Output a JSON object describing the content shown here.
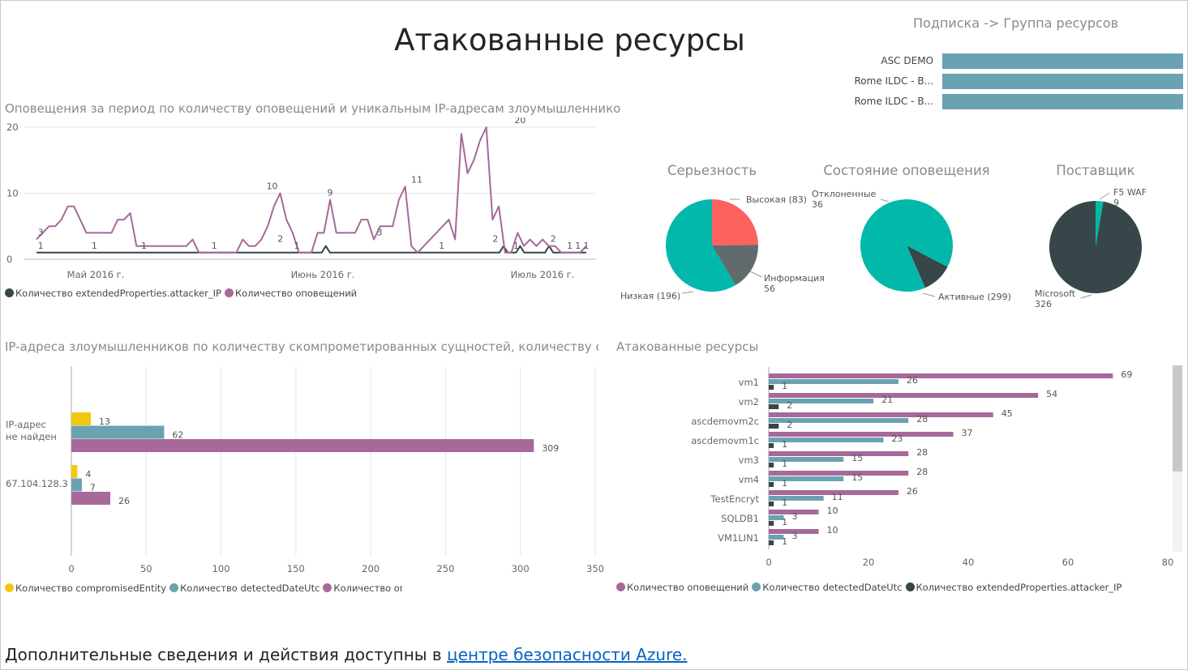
{
  "page": {
    "title": "Атакованные ресурсы",
    "footer_text": "Дополнительные сведения и действия доступны в ",
    "footer_link": "центре безопасности Azure.",
    "colors": {
      "purple": "#a66999",
      "teal": "#6aa2b2",
      "dark": "#374649",
      "yellow": "#f2c80f",
      "aqua": "#01b8aa",
      "red": "#fd625e",
      "grey": "#5f6b6d"
    }
  },
  "subscription": {
    "title": "Подписка -> Группа ресурсов",
    "rows": [
      {
        "label": "ASC DEMO",
        "value": 1
      },
      {
        "label": "Rome ILDC - B...",
        "value": 1
      },
      {
        "label": "Rome ILDC - B...",
        "value": 1
      }
    ]
  },
  "line_chart": {
    "title": "Оповещения за период по количеству оповещений и уникальным IP-адресам злоумышленников",
    "chart_data": {
      "type": "line",
      "y_ticks": [
        "20",
        "10",
        "0"
      ],
      "ylim": [
        0,
        20
      ],
      "x_ticks": [
        "Май 2016 г.",
        "Июнь 2016 г.",
        "Июль 2016 г."
      ],
      "series": [
        {
          "name": "Количество extendedProperties.attacker_IP",
          "color": "#374649",
          "values": [
            1,
            1,
            1,
            1,
            1,
            1,
            1,
            1,
            1,
            1,
            1,
            1,
            1,
            1,
            1,
            1,
            1,
            1,
            1,
            1,
            1,
            1,
            1,
            1,
            1,
            1,
            1,
            1,
            1,
            1,
            1,
            1,
            1,
            1,
            1,
            1,
            1,
            1,
            1,
            1,
            1,
            1,
            1,
            1,
            1,
            1,
            1,
            1,
            1,
            1,
            1,
            1,
            1,
            1,
            1,
            1,
            1,
            1,
            1,
            1,
            1,
            1,
            1,
            1,
            1,
            1,
            1,
            1,
            1,
            1,
            2,
            1,
            1,
            1,
            1,
            1,
            1,
            1,
            1,
            1,
            1,
            1,
            1,
            1,
            1,
            1,
            1,
            1,
            1,
            1,
            1,
            1,
            1,
            1,
            1,
            1,
            1,
            1,
            1,
            1,
            1,
            1,
            1,
            1,
            1,
            1,
            1,
            1,
            1,
            1,
            1,
            1,
            1,
            2,
            1,
            1,
            1,
            2,
            1,
            1,
            1,
            1,
            1,
            1,
            2,
            1,
            1,
            1,
            1,
            1,
            1,
            1,
            1,
            1
          ]
        },
        {
          "name": "Количество оповещений",
          "color": "#a66999",
          "values": [
            3,
            4,
            5,
            5,
            6,
            8,
            8,
            6,
            4,
            4,
            4,
            4,
            4,
            6,
            6,
            7,
            2,
            2,
            2,
            2,
            2,
            2,
            2,
            2,
            2,
            3,
            1,
            1,
            1,
            1,
            1,
            1,
            1,
            3,
            2,
            2,
            3,
            5,
            8,
            10,
            6,
            4,
            1,
            1,
            1,
            4,
            4,
            9,
            4,
            4,
            4,
            4,
            6,
            6,
            3,
            5,
            5,
            5,
            9,
            11,
            2,
            1,
            2,
            3,
            4,
            5,
            6,
            3,
            19,
            13,
            15,
            18,
            20,
            6,
            8,
            1,
            1,
            4,
            2,
            3,
            2,
            3,
            2,
            2,
            1,
            1,
            1,
            1,
            2
          ]
        }
      ],
      "point_labels": [
        {
          "x": 1,
          "y": 3,
          "text": "3"
        },
        {
          "x": 1,
          "y": 1,
          "text": "1"
        },
        {
          "x": 14,
          "y": 1,
          "text": "1"
        },
        {
          "x": 26,
          "y": 1,
          "text": "1"
        },
        {
          "x": 43,
          "y": 1,
          "text": "1"
        },
        {
          "x": 57,
          "y": 10,
          "text": "10"
        },
        {
          "x": 59,
          "y": 2,
          "text": "2"
        },
        {
          "x": 63,
          "y": 1,
          "text": "1"
        },
        {
          "x": 71,
          "y": 9,
          "text": "9"
        },
        {
          "x": 83,
          "y": 3,
          "text": "3"
        },
        {
          "x": 92,
          "y": 11,
          "text": "11"
        },
        {
          "x": 98,
          "y": 1,
          "text": "1"
        },
        {
          "x": 111,
          "y": 2,
          "text": "2"
        },
        {
          "x": 116,
          "y": 1,
          "text": "1"
        },
        {
          "x": 117,
          "y": 20,
          "text": "20"
        },
        {
          "x": 125,
          "y": 2,
          "text": "2"
        },
        {
          "x": 129,
          "y": 1,
          "text": "1"
        },
        {
          "x": 131,
          "y": 1,
          "text": "1"
        },
        {
          "x": 133,
          "y": 1,
          "text": "1"
        }
      ]
    },
    "legend": [
      {
        "label": "Количество extendedProperties.attacker_IP",
        "color": "#374649"
      },
      {
        "label": "Количество оповещений",
        "color": "#a66999"
      }
    ]
  },
  "pies": [
    {
      "title": "Серьезность",
      "chart_data": {
        "type": "pie",
        "slices": [
          {
            "label": "Высокая (83)",
            "value": 83,
            "color": "#fd625e"
          },
          {
            "label": "Информация 56",
            "value": 56,
            "color": "#5f6b6d"
          },
          {
            "label": "Низкая (196)",
            "value": 196,
            "color": "#01b8aa"
          }
        ]
      }
    },
    {
      "title": "Состояние оповещения",
      "chart_data": {
        "type": "pie",
        "slices": [
          {
            "label": "Отклоненные 36",
            "value": 36,
            "color": "#374649"
          },
          {
            "label": "Активные (299)",
            "value": 299,
            "color": "#01b8aa"
          }
        ]
      }
    },
    {
      "title": "Поставщик",
      "chart_data": {
        "type": "pie",
        "slices": [
          {
            "label": "F5 WAF 9",
            "value": 9,
            "color": "#01b8aa"
          },
          {
            "label": "Microsoft 326",
            "value": 326,
            "color": "#374649"
          }
        ]
      }
    }
  ],
  "ip_chart": {
    "title": "IP-адреса злоумышленников по количеству скомпрометированных сущностей, количеству обнаруже...",
    "chart_data": {
      "type": "bar",
      "orientation": "horizontal",
      "categories": [
        "IP-адрес не найден",
        "67.104.128.3"
      ],
      "series": [
        {
          "name": "Количество compromisedEntity",
          "color": "#f2c80f",
          "values": [
            13,
            4
          ]
        },
        {
          "name": "Количество detectedDateUtc",
          "color": "#6aa2b2",
          "values": [
            62,
            7
          ]
        },
        {
          "name": "Количество оповещений",
          "color": "#a66999",
          "values": [
            309,
            26
          ]
        }
      ],
      "xlim": [
        0,
        350
      ],
      "x_ticks": [
        "0",
        "50",
        "100",
        "150",
        "200",
        "250",
        "300",
        "350"
      ]
    },
    "legend": [
      {
        "label": "Количество compromisedEntity",
        "color": "#f2c80f"
      },
      {
        "label": "Количество detectedDateUtc",
        "color": "#6aa2b2"
      },
      {
        "label": "Количество оповещений",
        "color": "#a66999"
      }
    ]
  },
  "res_chart": {
    "title": "Атакованные ресурсы",
    "chart_data": {
      "type": "bar",
      "orientation": "horizontal",
      "categories": [
        "vm1",
        "vm2",
        "ascdemovm2c",
        "ascdemovm1c",
        "vm3",
        "vm4",
        "TestEncryt",
        "SQLDB1",
        "VM1LIN1"
      ],
      "series": [
        {
          "name": "Количество оповещений",
          "color": "#a66999",
          "values": [
            69,
            54,
            45,
            37,
            28,
            28,
            26,
            10,
            10
          ]
        },
        {
          "name": "Количество detectedDateUtc",
          "color": "#6aa2b2",
          "values": [
            26,
            21,
            28,
            23,
            15,
            15,
            11,
            3,
            3
          ]
        },
        {
          "name": "Количество extendedProperties.attacker_IP",
          "color": "#374649",
          "values": [
            1,
            2,
            2,
            1,
            1,
            1,
            1,
            1,
            1
          ]
        }
      ],
      "xlim": [
        0,
        80
      ],
      "x_ticks": [
        "0",
        "20",
        "40",
        "60",
        "80"
      ]
    },
    "legend": [
      {
        "label": "Количество оповещений",
        "color": "#a66999"
      },
      {
        "label": "Количество detectedDateUtc",
        "color": "#6aa2b2"
      },
      {
        "label": "Количество extendedProperties.attacker_IP",
        "color": "#374649"
      }
    ]
  }
}
